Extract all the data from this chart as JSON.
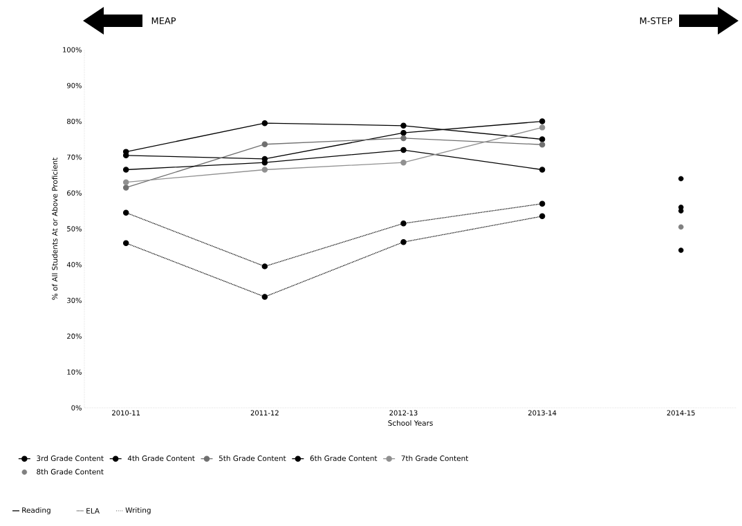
{
  "chart_data": {
    "type": "line",
    "ylabel": "% of All Students At or Above Proficient",
    "xlabel": "School Years",
    "categories": [
      "2010-11",
      "2011-12",
      "2012-13",
      "2013-14",
      "2014-15"
    ],
    "ylim": [
      0,
      100
    ],
    "yticks": [
      {
        "value": 0,
        "label": "0%"
      },
      {
        "value": 10,
        "label": "10%"
      },
      {
        "value": 20,
        "label": "20%"
      },
      {
        "value": 30,
        "label": "30%"
      },
      {
        "value": 40,
        "label": "40%"
      },
      {
        "value": 50,
        "label": "50%"
      },
      {
        "value": 60,
        "label": "60%"
      },
      {
        "value": 70,
        "label": "70%"
      },
      {
        "value": 80,
        "label": "80%"
      },
      {
        "value": 90,
        "label": "90%"
      },
      {
        "value": 100,
        "label": "100%"
      }
    ],
    "marker": "circle",
    "legend": "bottom",
    "series": [
      {
        "name": "3rd Grade Content",
        "color": "#000000",
        "line_style": "solid",
        "values": [
          71.5,
          79.5,
          78.8,
          75,
          null
        ]
      },
      {
        "name": "4th Grade Content",
        "color": "#000000",
        "line_style": "solid",
        "values": [
          70.5,
          69.5,
          76.8,
          80,
          null
        ]
      },
      {
        "name": "5th Grade Content",
        "color": "#707070",
        "line_style": "solid",
        "values": [
          61.5,
          73.6,
          75.3,
          73.5,
          null
        ]
      },
      {
        "name": "6th Grade Content",
        "color": "#000000",
        "line_style": "solid",
        "values": [
          66.5,
          68.5,
          72,
          66.5,
          null
        ]
      },
      {
        "name": "7th Grade Content",
        "color": "#909090",
        "line_style": "solid",
        "values": [
          63,
          66.5,
          68.5,
          78.3,
          null
        ]
      },
      {
        "name": "8th Grade Content",
        "type": "scatter",
        "color": "#808080",
        "values": [
          null,
          null,
          null,
          null,
          50.5
        ]
      },
      {
        "type": "line",
        "color": "#000000",
        "line_style": "dotted",
        "values": [
          54.5,
          39.5,
          51.5,
          57,
          null
        ]
      },
      {
        "type": "line",
        "color": "#000000",
        "line_style": "dotted",
        "values": [
          46,
          31,
          46.3,
          53.5,
          null
        ]
      },
      {
        "type": "scatter",
        "color": "#000000",
        "values": [
          null,
          null,
          null,
          null,
          64
        ]
      },
      {
        "type": "scatter",
        "color": "#000000",
        "values": [
          null,
          null,
          null,
          null,
          56
        ]
      },
      {
        "type": "scatter",
        "color": "#000000",
        "values": [
          null,
          null,
          null,
          null,
          55
        ]
      },
      {
        "type": "scatter",
        "color": "#000000",
        "values": [
          null,
          null,
          null,
          null,
          44
        ]
      }
    ],
    "annotations": [
      "MEAP",
      "M-STEP",
      "Reading",
      "ELA",
      "Writing"
    ]
  }
}
